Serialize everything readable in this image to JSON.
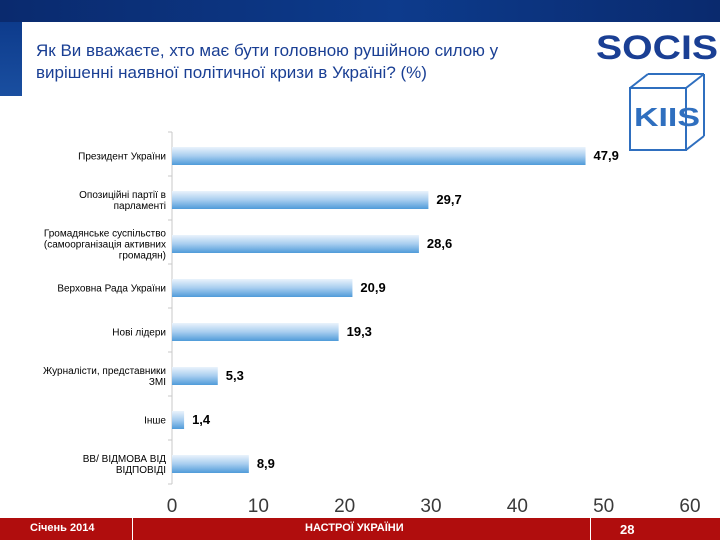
{
  "title": "Як Ви вважаєте, хто має бути головною рушійною силою у вирішенні наявної політичної кризи в Україні? (%)",
  "logos": {
    "socis": "SOCIS",
    "kiis": "KIIS"
  },
  "footer": {
    "date": "Січень 2014",
    "center": "НАСТРОЇ УКРАЇНИ",
    "page": "28"
  },
  "colors": {
    "bar_top": "#eaf3fc",
    "bar_bottom": "#4f9bd9",
    "accent": "#1a3f94",
    "footer": "#b00d0d"
  },
  "chart_data": {
    "type": "bar",
    "orientation": "horizontal",
    "categories": [
      [
        "Президент України"
      ],
      [
        "Опозиційні партії в",
        "парламенті"
      ],
      [
        "Громадянське суспільство",
        "(самоорганізація активних",
        "громадян)"
      ],
      [
        "Верховна Рада України"
      ],
      [
        "Нові лідери"
      ],
      [
        "Журналісти, представники",
        "ЗМІ"
      ],
      [
        "Інше"
      ],
      [
        "ВВ/ ВІДМОВА ВІД",
        "ВІДПОВІДІ"
      ]
    ],
    "values": [
      47.9,
      29.7,
      28.6,
      20.9,
      19.3,
      5.3,
      1.4,
      8.9
    ],
    "value_labels": [
      "47,9",
      "29,7",
      "28,6",
      "20,9",
      "19,3",
      "5,3",
      "1,4",
      "8,9"
    ],
    "xlim": [
      0,
      60
    ],
    "xticks": [
      "0",
      "10",
      "20",
      "30",
      "40",
      "50",
      "60"
    ],
    "title": "",
    "xlabel": "",
    "ylabel": ""
  }
}
